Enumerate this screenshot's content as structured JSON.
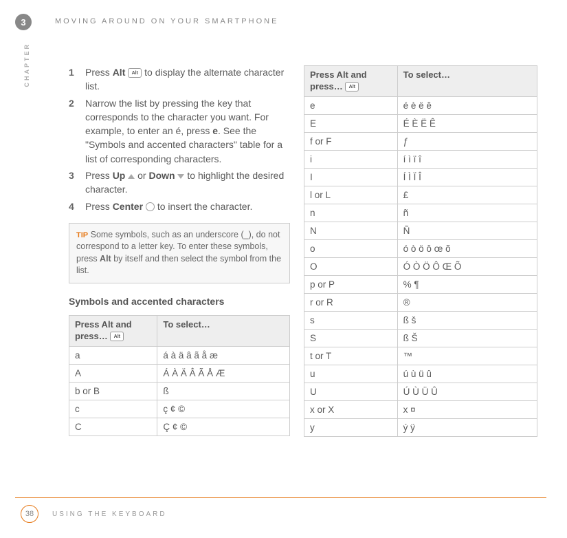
{
  "header": {
    "chapter_num": "3",
    "title": "MOVING AROUND ON YOUR SMARTPHONE",
    "side_label": "CHAPTER"
  },
  "steps": [
    {
      "n": "1",
      "html": "Press <b>Alt</b> <span class='icon-key' data-name='alt-key-icon'>Alt</span> to display the alternate character list."
    },
    {
      "n": "2",
      "html": "Narrow the list by pressing the key that corresponds to the character you want. For example, to enter an é, press <b>e</b>. See the \"Symbols and accented characters\" table for a list of corresponding characters."
    },
    {
      "n": "3",
      "html": "Press <b>Up</b> <span class='icon-up' data-name='up-icon' data-interactable='false'></span> or <b>Down</b> <span class='icon-down' data-name='down-icon' data-interactable='false'></span> to highlight the desired character."
    },
    {
      "n": "4",
      "html": "Press <b>Center</b> <span class='icon-circle' data-name='center-icon' data-interactable='false'></span> to insert the character."
    }
  ],
  "tip": {
    "label": "TIP",
    "html": "Some symbols, such as an underscore (_), do not correspond to a letter key. To enter these symbols, press <b>Alt</b> by itself and then select the symbol from the list."
  },
  "section_heading": "Symbols and accented characters",
  "table_headers": {
    "col1_html": "Press Alt and press… <span class='icon-key' data-name='alt-key-icon'>Alt</span>",
    "col2": "To select…"
  },
  "table1_rows": [
    {
      "k": "a",
      "v": "á à ä â ã å æ"
    },
    {
      "k": "A",
      "v": "Á À Ä Â Ã Å Æ"
    },
    {
      "k": "b or B",
      "v": "ß"
    },
    {
      "k": "c",
      "v": "ç ¢ ©"
    },
    {
      "k": "C",
      "v": "Ç ¢ ©"
    }
  ],
  "table2_rows": [
    {
      "k": "e",
      "v": "é è ë ê"
    },
    {
      "k": "E",
      "v": "É È Ë Ê"
    },
    {
      "k": "f or F",
      "v": "ƒ"
    },
    {
      "k": "i",
      "v": "í ì ï î"
    },
    {
      "k": "I",
      "v": "Í Ì Ï Î"
    },
    {
      "k": "l or L",
      "v": "£"
    },
    {
      "k": "n",
      "v": "ñ"
    },
    {
      "k": "N",
      "v": "Ñ"
    },
    {
      "k": "o",
      "v": "ó ò ö ô œ õ"
    },
    {
      "k": "O",
      "v": "Ó Ò Ö Ô Œ Õ"
    },
    {
      "k": "p or P",
      "v": "% ¶"
    },
    {
      "k": "r or R",
      "v": "®"
    },
    {
      "k": "s",
      "v": "ß š"
    },
    {
      "k": "S",
      "v": "ß Š"
    },
    {
      "k": "t or T",
      "v": "™"
    },
    {
      "k": "u",
      "v": "ú ù ü û"
    },
    {
      "k": "U",
      "v": "Ú Ù Ü Û"
    },
    {
      "k": "x or X",
      "v": "x ¤"
    },
    {
      "k": "y",
      "v": " ý ÿ"
    }
  ],
  "footer": {
    "page": "38",
    "title": "USING THE KEYBOARD"
  }
}
